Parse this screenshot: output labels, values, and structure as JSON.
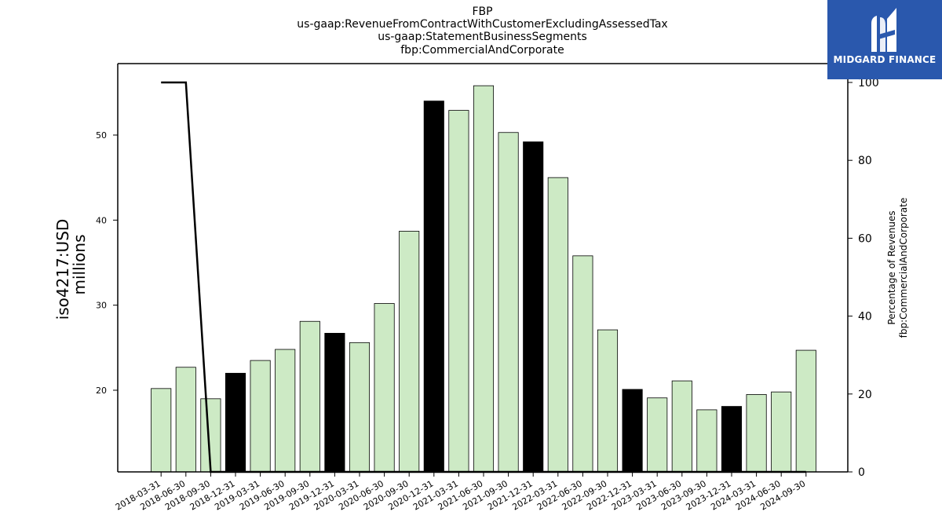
{
  "title_lines": [
    "FBP",
    "us-gaap:RevenueFromContractWithCustomerExcludingAssessedTax",
    "us-gaap:StatementBusinessSegments",
    "fbp:CommercialAndCorporate"
  ],
  "brand": {
    "name": "MIDGARD FINANCE",
    "bg_color": "#2a58ad",
    "text_color": "#ffffff"
  },
  "colors": {
    "bar_default": "#cdeac5",
    "bar_highlight": "#000000",
    "bar_edge": "#000000",
    "line": "#000000"
  },
  "chart_data": {
    "type": "bar",
    "categories": [
      "2018-03-31",
      "2018-06-30",
      "2018-09-30",
      "2018-12-31",
      "2019-03-31",
      "2019-06-30",
      "2019-09-30",
      "2019-12-31",
      "2020-03-31",
      "2020-06-30",
      "2020-09-30",
      "2020-12-31",
      "2021-03-31",
      "2021-06-30",
      "2021-09-30",
      "2021-12-31",
      "2022-03-31",
      "2022-06-30",
      "2022-09-30",
      "2022-12-31",
      "2023-03-31",
      "2023-06-30",
      "2023-09-30",
      "2023-12-31",
      "2024-03-31",
      "2024-06-30",
      "2024-09-30"
    ],
    "values": [
      20.2,
      22.7,
      19.0,
      22.0,
      23.5,
      24.8,
      28.1,
      26.7,
      25.6,
      30.2,
      38.7,
      54.0,
      52.9,
      55.8,
      50.3,
      49.2,
      45.0,
      35.8,
      27.1,
      20.1,
      19.1,
      21.1,
      17.7,
      18.1,
      19.5,
      19.8,
      24.7
    ],
    "highlight": [
      false,
      false,
      false,
      true,
      false,
      false,
      false,
      true,
      false,
      false,
      false,
      true,
      false,
      false,
      false,
      true,
      false,
      false,
      false,
      true,
      false,
      false,
      false,
      true,
      false,
      false,
      false
    ],
    "ylabel": [
      "iso4217:USD",
      "millions"
    ],
    "ylim": [
      10.4,
      58.4
    ],
    "yticks": [
      20,
      30,
      40,
      50
    ],
    "line_series": {
      "values": [
        100,
        100,
        0,
        0,
        0,
        0,
        0,
        0,
        0,
        0,
        0,
        0,
        0,
        0,
        0,
        0,
        0,
        0,
        0,
        0,
        0,
        0,
        0,
        0,
        0,
        0,
        0
      ],
      "ylabel": [
        "Percentage of Revenues",
        "fbp:CommercialAndCorporate"
      ],
      "ylim": [
        0,
        100
      ],
      "yticks": [
        0,
        20,
        40,
        60,
        80,
        100
      ]
    },
    "grid": false,
    "legend": "none"
  }
}
